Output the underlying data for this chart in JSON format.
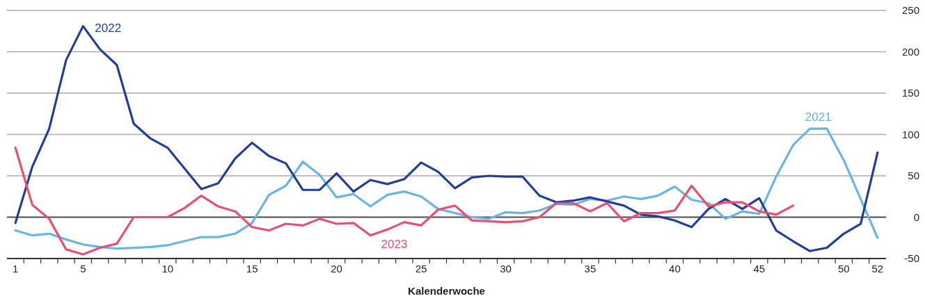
{
  "chart_data": {
    "type": "line",
    "xlabel": "Kalenderwoche",
    "x": [
      1,
      2,
      3,
      4,
      5,
      6,
      7,
      8,
      9,
      10,
      11,
      12,
      13,
      14,
      15,
      16,
      17,
      18,
      19,
      20,
      21,
      22,
      23,
      24,
      25,
      26,
      27,
      28,
      29,
      30,
      31,
      32,
      33,
      34,
      35,
      36,
      37,
      38,
      39,
      40,
      41,
      42,
      43,
      44,
      45,
      46,
      47,
      48,
      49,
      50,
      51,
      52
    ],
    "series": [
      {
        "name": "2021",
        "color": "#6cb4e4",
        "values": [
          -16,
          -22,
          -20,
          -27,
          -33,
          -36,
          -38,
          -37,
          -36,
          -34,
          -29,
          -24,
          -24,
          -20,
          -7,
          27,
          38,
          67,
          51,
          24,
          28,
          13,
          27,
          31,
          25,
          10,
          5,
          0,
          -2,
          6,
          5,
          8,
          16,
          15,
          22,
          20,
          25,
          22,
          26,
          37,
          21,
          17,
          -2,
          7,
          4,
          49,
          87,
          107,
          107,
          69,
          22,
          -25
        ]
      },
      {
        "name": "2022",
        "color": "#233e99",
        "values": [
          -7,
          61,
          107,
          190,
          231,
          203,
          184,
          113,
          95,
          84,
          59,
          34,
          41,
          71,
          90,
          74,
          65,
          33,
          33,
          53,
          31,
          45,
          40,
          46,
          66,
          55,
          35,
          48,
          50,
          49,
          49,
          26,
          18,
          20,
          24,
          19,
          14,
          3,
          1,
          -4,
          -12,
          10,
          22,
          10,
          23,
          -16,
          -29,
          -41,
          -37,
          -20,
          -8,
          78
        ]
      },
      {
        "name": "2023",
        "color": "#e9506f",
        "values": [
          84,
          15,
          -2,
          -39,
          -45,
          -37,
          -32,
          0,
          0,
          0,
          11,
          26,
          13,
          7,
          -12,
          -16,
          -8,
          -10,
          -2,
          -8,
          -7,
          -22,
          -15,
          -6,
          -10,
          9,
          14,
          -4,
          -5,
          -6,
          -5,
          0,
          17,
          17,
          7,
          17,
          -5,
          5,
          5,
          8,
          38,
          13,
          18,
          18,
          7,
          3,
          14,
          null,
          null,
          null,
          null,
          null
        ]
      }
    ],
    "xlim": [
      0.5,
      52.5
    ],
    "xticks": [
      1,
      {
        "value": 1.5,
        "label": null
      },
      {
        "value": 2.5,
        "label": null
      },
      {
        "value": 3.5,
        "label": null
      },
      {
        "value": 4.5,
        "label": null
      },
      5,
      {
        "value": 5.5,
        "label": null
      },
      {
        "value": 6.5,
        "label": null
      },
      {
        "value": 7.5,
        "label": null
      },
      {
        "value": 8.5,
        "label": null
      },
      {
        "value": 9.5,
        "label": null
      },
      10,
      {
        "value": 10.5,
        "label": null
      },
      {
        "value": 11.5,
        "label": null
      },
      {
        "value": 12.5,
        "label": null
      },
      {
        "value": 13.5,
        "label": null
      },
      {
        "value": 14.5,
        "label": null
      },
      15,
      {
        "value": 15.5,
        "label": null
      },
      {
        "value": 16.5,
        "label": null
      },
      {
        "value": 17.5,
        "label": null
      },
      {
        "value": 18.5,
        "label": null
      },
      {
        "value": 19.5,
        "label": null
      },
      20,
      {
        "value": 20.5,
        "label": null
      },
      {
        "value": 21.5,
        "label": null
      },
      {
        "value": 22.5,
        "label": null
      },
      {
        "value": 23.5,
        "label": null
      },
      {
        "value": 24.5,
        "label": null
      },
      25,
      {
        "value": 25.5,
        "label": null
      },
      {
        "value": 26.5,
        "label": null
      },
      {
        "value": 27.5,
        "label": null
      },
      {
        "value": 28.5,
        "label": null
      },
      {
        "value": 29.5,
        "label": null
      },
      30,
      {
        "value": 30.5,
        "label": null
      },
      {
        "value": 31.5,
        "label": null
      },
      {
        "value": 32.5,
        "label": null
      },
      {
        "value": 33.5,
        "label": null
      },
      {
        "value": 34.5,
        "label": null
      },
      35,
      {
        "value": 35.5,
        "label": null
      },
      {
        "value": 36.5,
        "label": null
      },
      {
        "value": 37.5,
        "label": null
      },
      {
        "value": 38.5,
        "label": null
      },
      {
        "value": 39.5,
        "label": null
      },
      40,
      {
        "value": 40.5,
        "label": null
      },
      {
        "value": 41.5,
        "label": null
      },
      {
        "value": 42.5,
        "label": null
      },
      {
        "value": 43.5,
        "label": null
      },
      {
        "value": 44.5,
        "label": null
      },
      45,
      {
        "value": 45.5,
        "label": null
      },
      {
        "value": 46.5,
        "label": null
      },
      {
        "value": 47.5,
        "label": null
      },
      {
        "value": 48.5,
        "label": null
      },
      {
        "value": 49.5,
        "label": null
      },
      50,
      {
        "value": 50.5,
        "label": null
      },
      {
        "value": 51.5,
        "label": null
      },
      52
    ],
    "ylim": [
      -50,
      250
    ],
    "yticks": [
      -50,
      0,
      50,
      100,
      150,
      200,
      250
    ],
    "grid": "y",
    "ref_lines": [
      {
        "axis": "y",
        "value": 0,
        "color": "#555555"
      }
    ],
    "marker": "none",
    "line_style": "solid"
  }
}
